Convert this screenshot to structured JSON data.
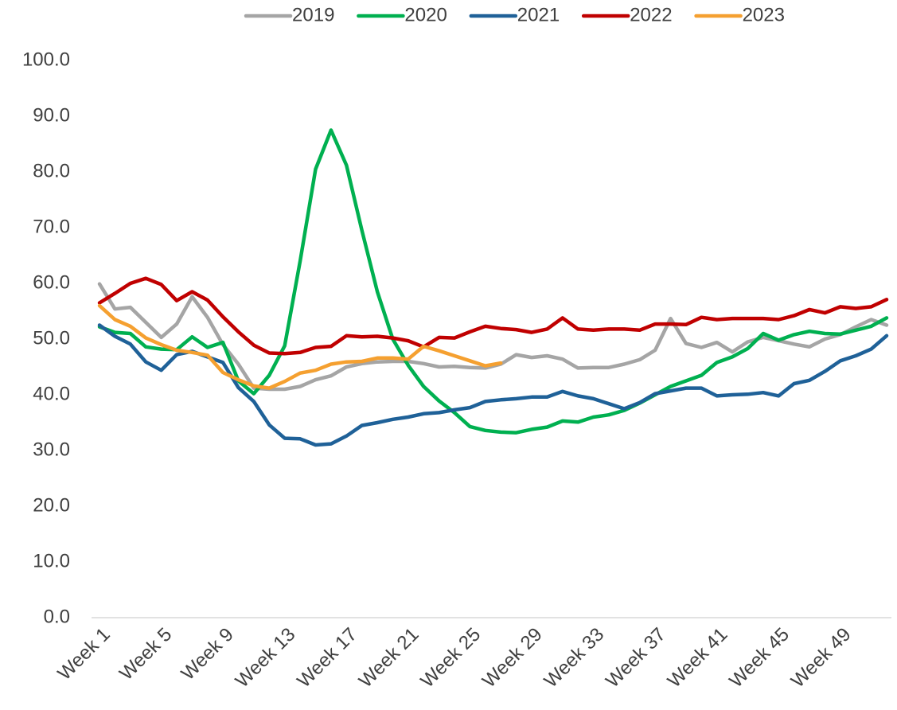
{
  "chart_data": {
    "type": "line",
    "categories": [
      "Week 1",
      null,
      null,
      null,
      "Week 5",
      null,
      null,
      null,
      "Week 9",
      null,
      null,
      null,
      "Week 13",
      null,
      null,
      null,
      "Week 17",
      null,
      null,
      null,
      "Week 21",
      null,
      null,
      null,
      "Week 25",
      null,
      null,
      null,
      "Week 29",
      null,
      null,
      null,
      "Week 33",
      null,
      null,
      null,
      "Week 37",
      null,
      null,
      null,
      "Week 41",
      null,
      null,
      null,
      "Week 45",
      null,
      null,
      null,
      "Week 49",
      null,
      null,
      null
    ],
    "series": [
      {
        "name": "2019",
        "color": "#a5a5a5",
        "values": [
          59.9,
          55.4,
          55.7,
          53,
          50.3,
          52.7,
          57.6,
          53.9,
          49,
          45.5,
          41.2,
          41,
          41,
          41.5,
          42.7,
          43.4,
          45,
          45.6,
          45.9,
          46,
          46,
          45.6,
          45,
          45.1,
          44.9,
          44.8,
          45.5,
          47.2,
          46.7,
          47,
          46.4,
          44.8,
          44.9,
          44.9,
          45.5,
          46.3,
          48,
          53.7,
          49.2,
          48.5,
          49.4,
          47.7,
          49.5,
          50.3,
          49.7,
          49.1,
          48.6,
          50,
          50.8,
          52.2,
          53.5,
          52.5
        ]
      },
      {
        "name": "2020",
        "color": "#00b050",
        "values": [
          52.2,
          51.2,
          51,
          48.6,
          48.2,
          48.1,
          50.4,
          48.5,
          49.4,
          42.5,
          40.2,
          43.5,
          48.8,
          64,
          80.5,
          87.5,
          81.2,
          69.5,
          58.5,
          50,
          45.3,
          41.5,
          38.9,
          36.8,
          34.3,
          33.6,
          33.3,
          33.2,
          33.8,
          34.2,
          35.3,
          35.1,
          36,
          36.4,
          37.2,
          38.5,
          40,
          41.5,
          42.5,
          43.5,
          45.8,
          46.8,
          48.3,
          51,
          49.8,
          50.8,
          51.4,
          51,
          50.9,
          51.6,
          52.3,
          53.8
        ]
      },
      {
        "name": "2021",
        "color": "#1f6198",
        "values": [
          52.5,
          50.5,
          49.1,
          45.9,
          44.4,
          47.2,
          47.8,
          46.8,
          45.8,
          41.3,
          38.8,
          34.6,
          32.2,
          32.1,
          31,
          31.2,
          32.6,
          34.5,
          35,
          35.6,
          36,
          36.6,
          36.8,
          37.3,
          37.7,
          38.8,
          39.1,
          39.3,
          39.6,
          39.6,
          40.6,
          39.8,
          39.3,
          38.4,
          37.5,
          38.6,
          40.2,
          40.7,
          41.2,
          41.2,
          39.8,
          40,
          40.1,
          40.4,
          39.8,
          42,
          42.6,
          44.2,
          46.1,
          47,
          48.2,
          50.6
        ]
      },
      {
        "name": "2022",
        "color": "#c00000",
        "values": [
          56.5,
          58.2,
          60,
          60.9,
          59.8,
          56.9,
          58.5,
          57,
          54,
          51.3,
          48.9,
          47.5,
          47.4,
          47.6,
          48.5,
          48.7,
          50.6,
          50.4,
          50.5,
          50.2,
          49.7,
          48.6,
          50.3,
          50.2,
          51.3,
          52.3,
          51.9,
          51.7,
          51.2,
          51.8,
          53.8,
          51.8,
          51.6,
          51.8,
          51.8,
          51.6,
          52.7,
          52.7,
          52.6,
          53.9,
          53.5,
          53.7,
          53.7,
          53.7,
          53.5,
          54.2,
          55.3,
          54.7,
          55.8,
          55.5,
          55.8,
          57.1
        ]
      },
      {
        "name": "2023",
        "color": "#f5a030",
        "values": [
          56,
          53.5,
          52.3,
          50.2,
          49,
          48,
          47.6,
          47.1,
          44,
          42.7,
          41.6,
          41.2,
          42.4,
          43.9,
          44.4,
          45.5,
          45.9,
          46,
          46.6,
          46.6,
          46.4,
          48.7,
          47.9,
          47,
          46.1,
          45.2,
          45.7,
          null,
          null,
          null,
          null,
          null,
          null,
          null,
          null,
          null,
          null,
          null,
          null,
          null,
          null,
          null,
          null,
          null,
          null,
          null,
          null,
          null,
          null,
          null,
          null,
          null
        ]
      }
    ],
    "ylim": [
      0,
      100
    ],
    "yticks": [
      {
        "value": 0,
        "label": "0.0"
      },
      {
        "value": 10,
        "label": "10.0"
      },
      {
        "value": 20,
        "label": "20.0"
      },
      {
        "value": 30,
        "label": "30.0"
      },
      {
        "value": 40,
        "label": "40.0"
      },
      {
        "value": 50,
        "label": "50.0"
      },
      {
        "value": 60,
        "label": "60.0"
      },
      {
        "value": 70,
        "label": "70.0"
      },
      {
        "value": 80,
        "label": "80.0"
      },
      {
        "value": 90,
        "label": "90.0"
      },
      {
        "value": 100,
        "label": "100.0"
      }
    ],
    "grid": false,
    "legend": "top"
  }
}
